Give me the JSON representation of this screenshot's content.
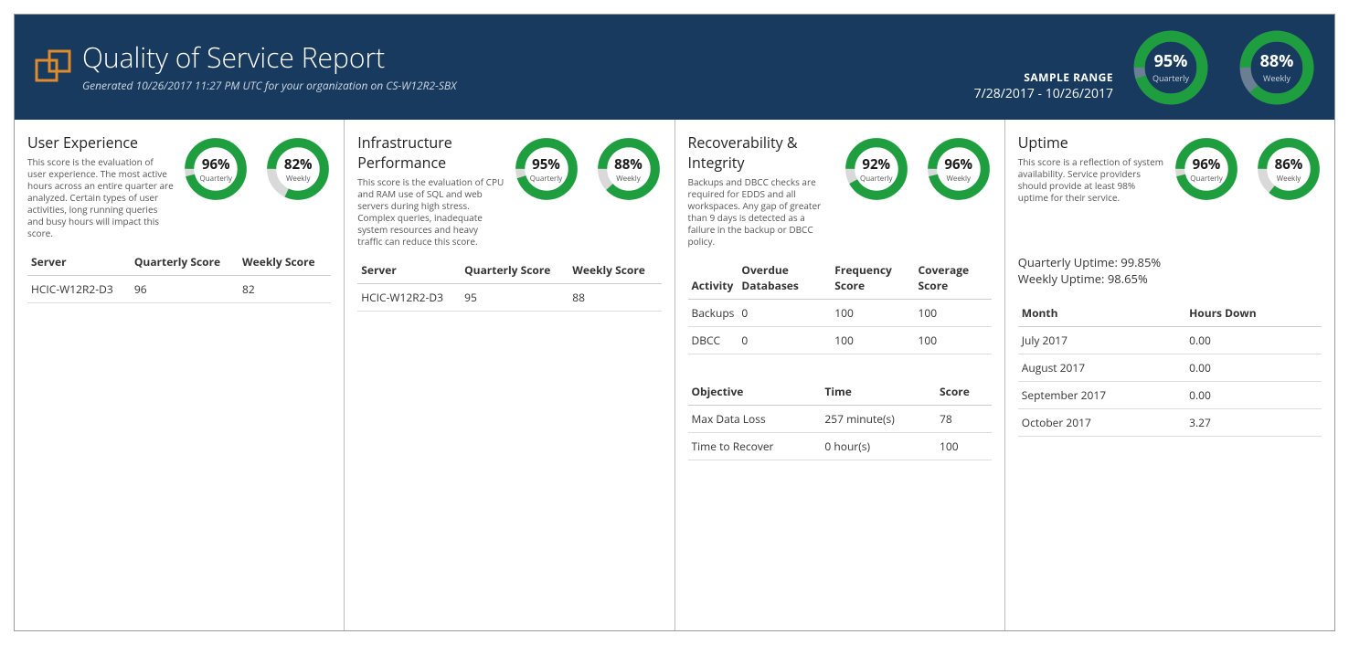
{
  "colors": {
    "header_bg": "#173a5e",
    "donut_fill": "#1e9e3e",
    "donut_track": "#d9d9d9",
    "donut_track_header": "#6b7f94",
    "border": "#bbbbbb",
    "text_muted": "#555555",
    "logo_stroke": "#e08b2c"
  },
  "header": {
    "title": "Quality of Service Report",
    "subtitle": "Generated 10/26/2017 11:27 PM UTC for your organization on CS-W12R2-SBX",
    "sample_range_label": "SAMPLE RANGE",
    "sample_range_value": "7/28/2017 - 10/26/2017",
    "quarterly": {
      "value": 95,
      "label": "95%",
      "sub": "Quarterly"
    },
    "weekly": {
      "value": 88,
      "label": "88%",
      "sub": "Weekly"
    }
  },
  "user_experience": {
    "title": "User Experience",
    "desc": "This score is the evaluation of user experience. The most active hours across an entire quarter are analyzed. Certain types of user activities, long running queries and busy hours will impact this score.",
    "quarterly": {
      "value": 96,
      "label": "96%",
      "sub": "Quarterly"
    },
    "weekly": {
      "value": 82,
      "label": "82%",
      "sub": "Weekly"
    },
    "table": {
      "headers": [
        "Server",
        "Quarterly Score",
        "Weekly Score"
      ],
      "rows": [
        [
          "HCIC-W12R2-D3",
          "96",
          "82"
        ]
      ]
    }
  },
  "infrastructure": {
    "title": "Infrastructure Performance",
    "desc": "This score is the evaluation of CPU and RAM use of SQL and web servers during high stress. Complex queries, inadequate system resources and heavy traffic can reduce this score.",
    "quarterly": {
      "value": 95,
      "label": "95%",
      "sub": "Quarterly"
    },
    "weekly": {
      "value": 88,
      "label": "88%",
      "sub": "Weekly"
    },
    "table": {
      "headers": [
        "Server",
        "Quarterly Score",
        "Weekly Score"
      ],
      "rows": [
        [
          "HCIC-W12R2-D3",
          "95",
          "88"
        ]
      ]
    }
  },
  "recoverability": {
    "title": "Recoverability & Integrity",
    "desc": "Backups and DBCC checks are required for EDDS and all workspaces. Any gap of greater than 9 days is detected as a failure in the backup or DBCC policy.",
    "quarterly": {
      "value": 92,
      "label": "92%",
      "sub": "Quarterly"
    },
    "weekly": {
      "value": 96,
      "label": "96%",
      "sub": "Weekly"
    },
    "activity_table": {
      "headers": [
        "Activity",
        "Overdue Databases",
        "Frequency Score",
        "Coverage Score"
      ],
      "rows": [
        [
          "Backups",
          "0",
          "100",
          "100"
        ],
        [
          "DBCC",
          "0",
          "100",
          "100"
        ]
      ]
    },
    "objective_table": {
      "headers": [
        "Objective",
        "Time",
        "Score"
      ],
      "rows": [
        [
          "Max Data Loss",
          "257 minute(s)",
          "78"
        ],
        [
          "Time to Recover",
          "0 hour(s)",
          "100"
        ]
      ]
    }
  },
  "uptime": {
    "title": "Uptime",
    "desc": "This score is a reflection of system availability. Service providers should provide at least 98% uptime for their service.",
    "quarterly": {
      "value": 96,
      "label": "96%",
      "sub": "Quarterly"
    },
    "weekly": {
      "value": 86,
      "label": "86%",
      "sub": "Weekly"
    },
    "quarterly_uptime_label": "Quarterly Uptime: 99.85%",
    "weekly_uptime_label": "Weekly Uptime: 98.65%",
    "table": {
      "headers": [
        "Month",
        "Hours Down"
      ],
      "rows": [
        [
          "July 2017",
          "0.00"
        ],
        [
          "August 2017",
          "0.00"
        ],
        [
          "September 2017",
          "0.00"
        ],
        [
          "October 2017",
          "3.27"
        ]
      ]
    }
  }
}
